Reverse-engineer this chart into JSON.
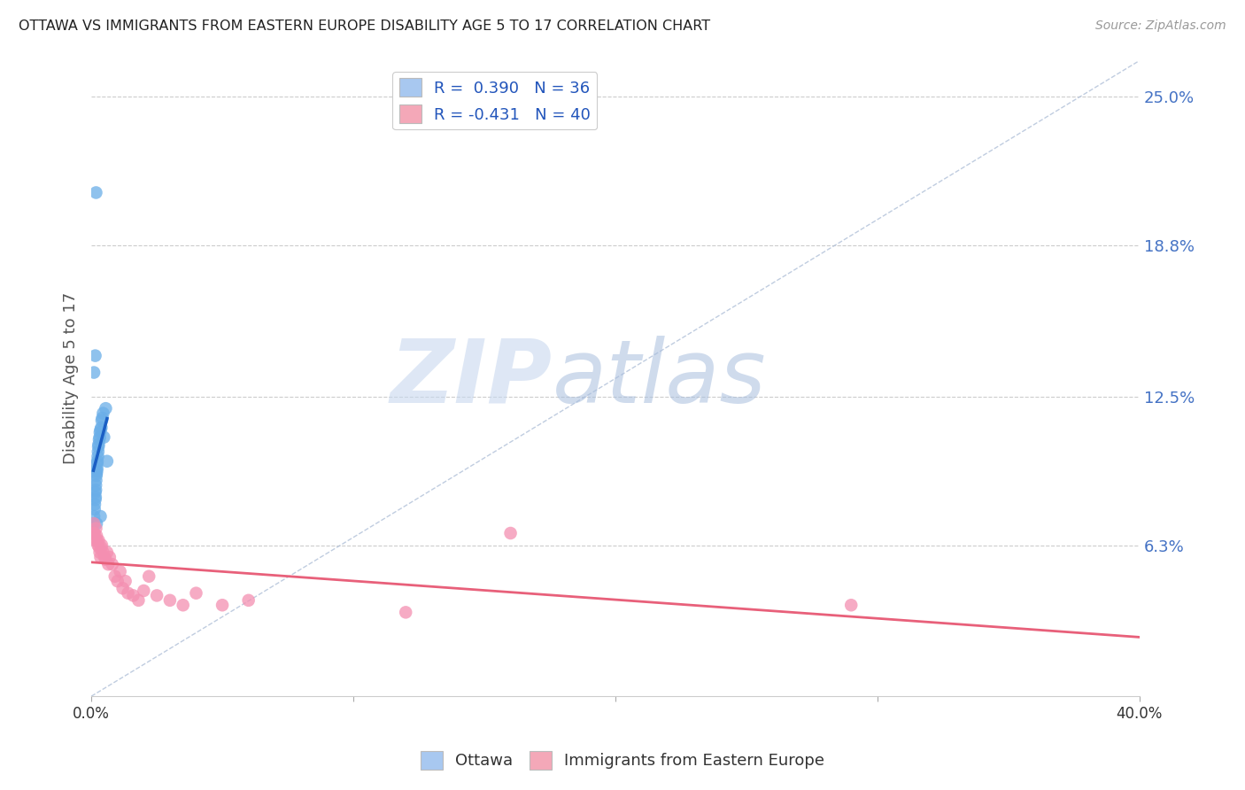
{
  "title": "OTTAWA VS IMMIGRANTS FROM EASTERN EUROPE DISABILITY AGE 5 TO 17 CORRELATION CHART",
  "source": "Source: ZipAtlas.com",
  "ylabel": "Disability Age 5 to 17",
  "xlim": [
    0.0,
    0.4
  ],
  "ylim": [
    0.0,
    0.265
  ],
  "ytick_right_labels": [
    "6.3%",
    "12.5%",
    "18.8%",
    "25.0%"
  ],
  "ytick_right_values": [
    0.063,
    0.125,
    0.188,
    0.25
  ],
  "legend_r1": "R =  0.390   N = 36",
  "legend_r2": "R = -0.431   N = 40",
  "legend_color1": "#a8c8f0",
  "legend_color2": "#f4a8b8",
  "color_blue": "#6aaee8",
  "color_pink": "#f48fb1",
  "color_blue_trend": "#1a5ec4",
  "color_pink_trend": "#e8607a",
  "watermark_zip": "ZIP",
  "watermark_atlas": "atlas",
  "watermark_color_zip": "#d0dff5",
  "watermark_color_atlas": "#b8cce8",
  "footnote_blue": "Ottawa",
  "footnote_pink": "Immigrants from Eastern Europe",
  "ottawa_x": [
    0.0008,
    0.001,
    0.0012,
    0.0013,
    0.0015,
    0.0015,
    0.0016,
    0.0017,
    0.0017,
    0.0018,
    0.0019,
    0.002,
    0.0021,
    0.0022,
    0.0022,
    0.0023,
    0.0025,
    0.0026,
    0.0027,
    0.0028,
    0.003,
    0.0032,
    0.0033,
    0.0035,
    0.0038,
    0.004,
    0.0042,
    0.0045,
    0.001,
    0.0015,
    0.0055,
    0.0048,
    0.002,
    0.0035,
    0.006,
    0.0018
  ],
  "ottawa_y": [
    0.072,
    0.075,
    0.078,
    0.08,
    0.082,
    0.085,
    0.083,
    0.086,
    0.088,
    0.09,
    0.092,
    0.093,
    0.094,
    0.095,
    0.097,
    0.098,
    0.1,
    0.102,
    0.104,
    0.105,
    0.107,
    0.108,
    0.11,
    0.111,
    0.112,
    0.115,
    0.116,
    0.118,
    0.135,
    0.142,
    0.12,
    0.108,
    0.072,
    0.075,
    0.098,
    0.21
  ],
  "immigrants_x": [
    0.0008,
    0.001,
    0.0012,
    0.0015,
    0.0018,
    0.002,
    0.0022,
    0.0025,
    0.0028,
    0.003,
    0.0032,
    0.0035,
    0.0038,
    0.004,
    0.0045,
    0.005,
    0.0055,
    0.006,
    0.0065,
    0.007,
    0.008,
    0.009,
    0.01,
    0.011,
    0.012,
    0.013,
    0.014,
    0.016,
    0.018,
    0.02,
    0.022,
    0.025,
    0.03,
    0.035,
    0.04,
    0.05,
    0.06,
    0.12,
    0.16,
    0.29
  ],
  "immigrants_y": [
    0.068,
    0.072,
    0.068,
    0.065,
    0.07,
    0.067,
    0.065,
    0.063,
    0.065,
    0.062,
    0.06,
    0.058,
    0.062,
    0.063,
    0.06,
    0.058,
    0.057,
    0.06,
    0.055,
    0.058,
    0.055,
    0.05,
    0.048,
    0.052,
    0.045,
    0.048,
    0.043,
    0.042,
    0.04,
    0.044,
    0.05,
    0.042,
    0.04,
    0.038,
    0.043,
    0.038,
    0.04,
    0.035,
    0.068,
    0.038
  ]
}
